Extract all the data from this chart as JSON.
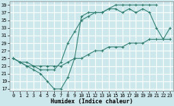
{
  "xlabel": "Humidex (Indice chaleur)",
  "ylabel": "",
  "background_color": "#cde8ec",
  "line_color": "#2e7d6e",
  "grid_color": "#ffffff",
  "xlim": [
    -0.5,
    23.5
  ],
  "ylim": [
    16.5,
    40
  ],
  "yticks": [
    17,
    19,
    21,
    23,
    25,
    27,
    29,
    31,
    33,
    35,
    37,
    39
  ],
  "xticks": [
    0,
    1,
    2,
    3,
    4,
    5,
    6,
    7,
    8,
    9,
    10,
    11,
    12,
    13,
    14,
    15,
    16,
    17,
    18,
    19,
    20,
    21,
    22,
    23
  ],
  "line1_x": [
    0,
    1,
    2,
    3,
    4,
    5,
    6,
    7,
    8,
    9,
    10,
    11,
    12,
    13,
    14,
    15,
    16,
    17,
    18,
    19,
    20,
    21
  ],
  "line1_y": [
    25,
    24,
    23,
    22,
    21,
    19,
    17,
    17,
    20,
    25,
    36,
    37,
    37,
    37,
    38,
    39,
    39,
    39,
    39,
    39,
    39,
    39
  ],
  "line2_x": [
    0,
    1,
    2,
    3,
    4,
    5,
    6,
    7,
    8,
    9,
    10,
    11,
    12,
    13,
    14,
    15,
    16,
    17,
    18,
    19,
    20,
    21,
    22,
    23
  ],
  "line2_y": [
    25,
    24,
    23,
    23,
    22,
    22,
    22,
    24,
    29,
    32,
    35,
    36,
    37,
    37,
    38,
    38,
    37,
    38,
    37,
    38,
    37,
    33,
    30,
    33
  ],
  "line3_x": [
    0,
    1,
    2,
    3,
    4,
    5,
    6,
    7,
    8,
    9,
    10,
    11,
    12,
    13,
    14,
    15,
    16,
    17,
    18,
    19,
    20,
    21,
    22,
    23
  ],
  "line3_y": [
    25,
    24,
    24,
    23,
    23,
    23,
    23,
    23,
    24,
    25,
    25,
    26,
    27,
    27,
    28,
    28,
    28,
    29,
    29,
    29,
    30,
    30,
    30,
    30
  ],
  "marker": "+",
  "markersize": 3,
  "linewidth": 0.8
}
